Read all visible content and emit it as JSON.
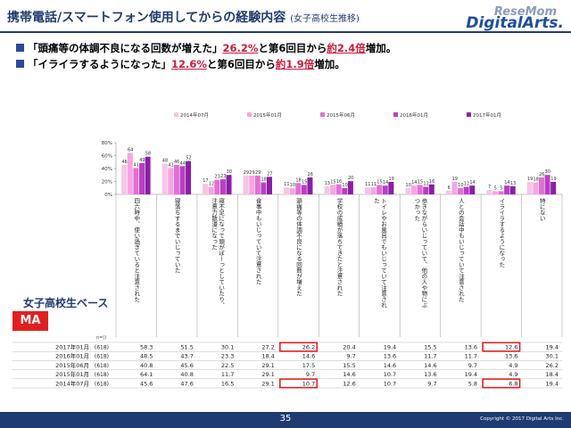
{
  "header": {
    "title": "携帯電話/スマートフォン使用してからの経験内容",
    "subtitle": "(女子高校生推移)",
    "logo_line1": "ReseMom",
    "logo_line2": "DigitalArts."
  },
  "bullets": [
    {
      "pre": "「頭痛等の体調不良になる回数が増えた」",
      "hl1": "26.2%",
      "mid": "と第6回目から",
      "hl2": "約2.4倍",
      "post": "増加。"
    },
    {
      "pre": "「イライラするようになった」",
      "hl1": "12.6%",
      "mid": "と第6回目から",
      "hl2": "約1.9倍",
      "post": "増加。"
    }
  ],
  "base_label": "女子高校生ベース",
  "ma_label": "MA",
  "n_label": "n=()",
  "footer": {
    "page": "35",
    "copyright": "Copyright © 2017 Digital Arts Inc."
  },
  "chart_data": {
    "type": "bar",
    "ylim": [
      0,
      80
    ],
    "yticks": [
      "0%",
      "20%",
      "40%",
      "60%",
      "80%"
    ],
    "grid": false,
    "legend_position": "top",
    "colors": {
      "2014年07月": "#f5c6e6",
      "2015年01月": "#f7a5e2",
      "2015年06月": "#e070d4",
      "2016年01月": "#b83fc2",
      "2017年01月": "#8a1fa8",
      "highlight": "#e02020"
    },
    "categories": [
      "四六時中、使い過ぎていると注意された",
      "寝落ちするまでいじっていた",
      "寝不足になって頭がぼーっとしていたり、注意力散漫になった",
      "食事中もいじっていて注意された",
      "頭痛等の体調不良になる回数が増えた",
      "学校の成績が落ちてきたと注意された",
      "トイレやお風呂でもいじっていて注意された",
      "歩きながらいじっていて、他の人や物にぶつかった",
      "人との会話中もいじっていて注意された",
      "イライラするようになった",
      "特にない"
    ],
    "series": [
      {
        "name": "2014年07月",
        "n": "(618)",
        "values": [
          45.6,
          47.6,
          16.5,
          29.1,
          10.7,
          12.6,
          10.7,
          9.7,
          5.8,
          6.8,
          19.4
        ],
        "labels": [
          "45.6",
          "47.6",
          "16.5",
          "29.1",
          "10.7",
          "12.6",
          "10.7",
          "9.7",
          "5.8",
          "6.8",
          "19.4"
        ]
      },
      {
        "name": "2015年01月",
        "n": "(618)",
        "values": [
          64.1,
          40.8,
          11.7,
          29.1,
          9.7,
          14.6,
          10.7,
          13.6,
          19.4,
          4.9,
          18.4
        ],
        "labels": [
          "64.1",
          "40.8",
          "11.7",
          "29.1",
          "9.7",
          "14.6",
          "10.7",
          "13.6",
          "19.4",
          "4.9",
          "18.4"
        ]
      },
      {
        "name": "2015年06月",
        "n": "(618)",
        "values": [
          40.8,
          45.6,
          22.5,
          29.1,
          17.5,
          15.5,
          14.6,
          14.6,
          9.7,
          4.9,
          26.2
        ],
        "labels": [
          "40.8",
          "45.6",
          "22.5",
          "29.1",
          "17.5",
          "15.5",
          "14.6",
          "14.6",
          "9.7",
          "4.9",
          "26.2"
        ]
      },
      {
        "name": "2016年01月",
        "n": "(618)",
        "values": [
          48.5,
          43.7,
          23.3,
          18.4,
          14.6,
          9.7,
          13.6,
          11.7,
          11.7,
          13.6,
          30.1
        ],
        "labels": [
          "48.5",
          "43.7",
          "23.3",
          "18.4",
          "14.6",
          "9.7",
          "13.6",
          "11.7",
          "11.7",
          "13.6",
          "30.1"
        ]
      },
      {
        "name": "2017年01月",
        "n": "(618)",
        "values": [
          58.3,
          51.5,
          30.1,
          27.2,
          26.2,
          20.4,
          19.4,
          15.5,
          13.6,
          12.6,
          19.4
        ],
        "labels": [
          "58.3",
          "51.5",
          "30.1",
          "27.2",
          "26.2",
          "20.4",
          "19.4",
          "15.5",
          "13.6",
          "12.6",
          "19.4"
        ]
      }
    ],
    "bar_labels": [
      [
        46,
        64,
        41,
        49,
        58
      ],
      [
        48,
        41,
        46,
        44,
        52
      ],
      [
        17,
        12,
        23,
        23,
        30
      ],
      [
        29,
        29,
        29,
        18,
        27
      ],
      [
        11,
        10,
        18,
        15,
        26
      ],
      [
        13,
        15,
        16,
        10,
        20
      ],
      [
        11,
        11,
        15,
        14,
        19
      ],
      [
        10,
        14,
        15,
        12,
        16
      ],
      [
        6,
        19,
        10,
        12,
        14
      ],
      [
        7,
        5,
        5,
        14,
        13
      ],
      [
        19,
        18,
        26,
        30,
        19
      ]
    ],
    "highlights": [
      {
        "row": "2017年01月",
        "category": 4
      },
      {
        "row": "2014年07月",
        "category": 4
      },
      {
        "row": "2017年01月",
        "category": 9
      },
      {
        "row": "2014年07月",
        "category": 9
      }
    ]
  }
}
